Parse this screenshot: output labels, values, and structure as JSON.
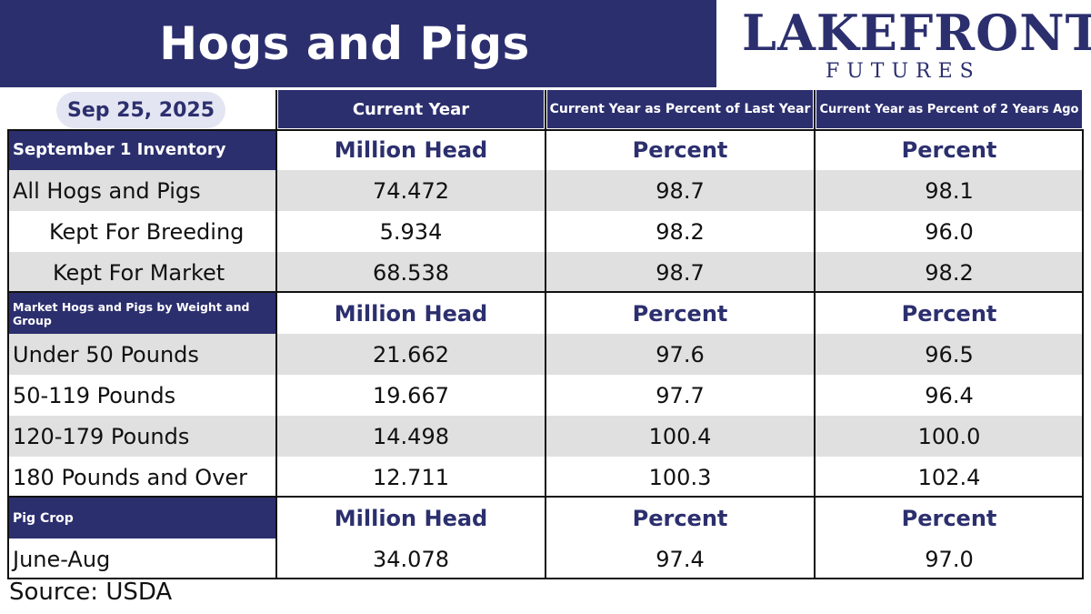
{
  "header": {
    "title": "Hogs and Pigs",
    "date": "Sep 25, 2025",
    "brand_primary": "LAKEFRONT",
    "brand_secondary": "FUTURES"
  },
  "columns": {
    "current": "Current Year",
    "pct_last_year": "Current Year as Percent of Last Year",
    "pct_two_years": "Current Year as Percent of 2 Years Ago"
  },
  "sections": [
    {
      "label": "September 1 Inventory",
      "units": [
        "Million Head",
        "Percent",
        "Percent"
      ],
      "rows": [
        {
          "label": "All Hogs and Pigs",
          "values": [
            "74.472",
            "98.7",
            "98.1"
          ]
        },
        {
          "label": "Kept For Breeding",
          "values": [
            "5.934",
            "98.2",
            "96.0"
          ]
        },
        {
          "label": "Kept For Market",
          "values": [
            "68.538",
            "98.7",
            "98.2"
          ]
        }
      ]
    },
    {
      "label": "Market Hogs and Pigs by Weight and Group",
      "units": [
        "Million Head",
        "Percent",
        "Percent"
      ],
      "rows": [
        {
          "label": "Under 50 Pounds",
          "values": [
            "21.662",
            "97.6",
            "96.5"
          ]
        },
        {
          "label": "50-119 Pounds",
          "values": [
            "19.667",
            "97.7",
            "96.4"
          ]
        },
        {
          "label": "120-179 Pounds",
          "values": [
            "14.498",
            "100.4",
            "100.0"
          ]
        },
        {
          "label": "180 Pounds and Over",
          "values": [
            "12.711",
            "100.3",
            "102.4"
          ]
        }
      ]
    },
    {
      "label": "Pig Crop",
      "units": [
        "Million Head",
        "Percent",
        "Percent"
      ],
      "rows": [
        {
          "label": "June-Aug",
          "values": [
            "34.078",
            "97.4",
            "97.0"
          ]
        }
      ]
    }
  ],
  "footer": {
    "source": "Source: USDA"
  },
  "colors": {
    "navy": "#2c2f6e",
    "row_gray": "#e0e0e0",
    "pill": "#e4e5f2"
  }
}
